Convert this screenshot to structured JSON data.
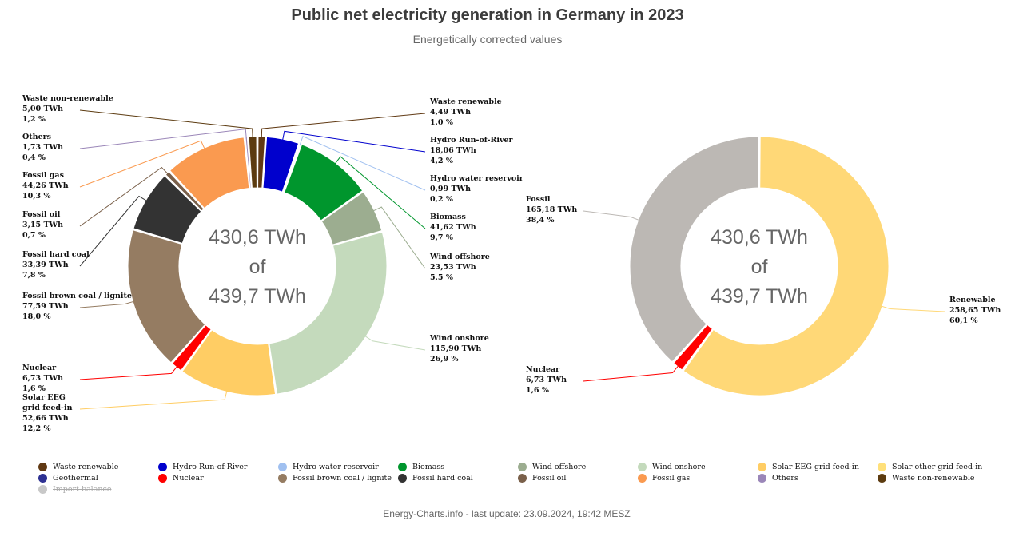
{
  "title": "Public net electricity generation in Germany in 2023",
  "subtitle": "Energetically corrected values",
  "footer": "Energy-Charts.info - last update: 23.09.2024, 19:42 MESZ",
  "chart_data": [
    {
      "type": "pie",
      "variant": "donut",
      "center_text": [
        "430,6 TWh",
        "of",
        "439,7 TWh"
      ],
      "slices": [
        {
          "name": "Waste renewable",
          "value": 4.49,
          "value_label": "4,49 TWh",
          "percent_label": "1,0 %",
          "color": "#603913",
          "label_side": "right"
        },
        {
          "name": "Hydro Run-of-River",
          "value": 18.06,
          "value_label": "18,06 TWh",
          "percent_label": "4,2 %",
          "color": "#0000cd",
          "label_side": "right"
        },
        {
          "name": "Hydro water reservoir",
          "value": 0.99,
          "value_label": "0,99 TWh",
          "percent_label": "0,2 %",
          "color": "#a0c0f0",
          "label_side": "right"
        },
        {
          "name": "Biomass",
          "value": 41.62,
          "value_label": "41,62 TWh",
          "percent_label": "9,7 %",
          "color": "#00962d",
          "label_side": "right"
        },
        {
          "name": "Wind offshore",
          "value": 23.53,
          "value_label": "23,53 TWh",
          "percent_label": "5,5 %",
          "color": "#9cad90",
          "label_side": "right"
        },
        {
          "name": "Wind onshore",
          "value": 115.9,
          "value_label": "115,90 TWh",
          "percent_label": "26,9 %",
          "color": "#c4dabc",
          "label_side": "right"
        },
        {
          "name": "Solar EEG grid feed-in",
          "value": 52.66,
          "value_label": "52,66 TWh",
          "percent_label": "12,2 %",
          "color": "#ffcd64",
          "label_side": "left"
        },
        {
          "name": "Nuclear",
          "value": 6.73,
          "value_label": "6,73 TWh",
          "percent_label": "1,6 %",
          "color": "#ff0000",
          "label_side": "left"
        },
        {
          "name": "Fossil brown coal / lignite",
          "value": 77.59,
          "value_label": "77,59 TWh",
          "percent_label": "18,0 %",
          "color": "#957c62",
          "label_side": "left"
        },
        {
          "name": "Fossil hard coal",
          "value": 33.39,
          "value_label": "33,39 TWh",
          "percent_label": "7,8 %",
          "color": "#333333",
          "label_side": "left"
        },
        {
          "name": "Fossil oil",
          "value": 3.15,
          "value_label": "3,15 TWh",
          "percent_label": "0,7 %",
          "color": "#7a604a",
          "label_side": "left"
        },
        {
          "name": "Fossil gas",
          "value": 44.26,
          "value_label": "44,26 TWh",
          "percent_label": "10,3 %",
          "color": "#fa9a50",
          "label_side": "left"
        },
        {
          "name": "Others",
          "value": 1.73,
          "value_label": "1,73 TWh",
          "percent_label": "0,4 %",
          "color": "#9a86b8",
          "label_side": "left"
        },
        {
          "name": "Waste non-renewable",
          "value": 5.0,
          "value_label": "5,00 TWh",
          "percent_label": "1,2 %",
          "color": "#5c3b10",
          "label_side": "left"
        }
      ]
    },
    {
      "type": "pie",
      "variant": "donut",
      "center_text": [
        "430,6 TWh",
        "of",
        "439,7 TWh"
      ],
      "slices": [
        {
          "name": "Renewable",
          "value": 258.65,
          "value_label": "258,65 TWh",
          "percent_label": "60,1 %",
          "color": "#ffd877",
          "label_side": "right"
        },
        {
          "name": "Nuclear",
          "value": 6.73,
          "value_label": "6,73 TWh",
          "percent_label": "1,6 %",
          "color": "#ff0000",
          "label_side": "left"
        },
        {
          "name": "Fossil",
          "value": 165.18,
          "value_label": "165,18 TWh",
          "percent_label": "38,4 %",
          "color": "#bcb8b4",
          "label_side": "left"
        }
      ]
    }
  ],
  "legend": [
    {
      "label": "Waste renewable",
      "color": "#603913",
      "enabled": true
    },
    {
      "label": "Hydro Run-of-River",
      "color": "#0000cd",
      "enabled": true
    },
    {
      "label": "Hydro water reservoir",
      "color": "#a0c0f0",
      "enabled": true
    },
    {
      "label": "Biomass",
      "color": "#00962d",
      "enabled": true
    },
    {
      "label": "Wind offshore",
      "color": "#9cad90",
      "enabled": true
    },
    {
      "label": "Wind onshore",
      "color": "#c4dabc",
      "enabled": true
    },
    {
      "label": "Solar EEG grid feed-in",
      "color": "#ffcd64",
      "enabled": true
    },
    {
      "label": "Solar other grid feed-in",
      "color": "#ffe07a",
      "enabled": true
    },
    {
      "label": "Geothermal",
      "color": "#2e3192",
      "enabled": true
    },
    {
      "label": "Nuclear",
      "color": "#ff0000",
      "enabled": true
    },
    {
      "label": "Fossil brown coal / lignite",
      "color": "#957c62",
      "enabled": true
    },
    {
      "label": "Fossil hard coal",
      "color": "#333333",
      "enabled": true
    },
    {
      "label": "Fossil oil",
      "color": "#7a604a",
      "enabled": true
    },
    {
      "label": "Fossil gas",
      "color": "#fa9a50",
      "enabled": true
    },
    {
      "label": "Others",
      "color": "#9a86b8",
      "enabled": true
    },
    {
      "label": "Waste non-renewable",
      "color": "#5c3b10",
      "enabled": true
    },
    {
      "label": "Import balance",
      "color": "#c8c8c8",
      "enabled": false
    }
  ]
}
